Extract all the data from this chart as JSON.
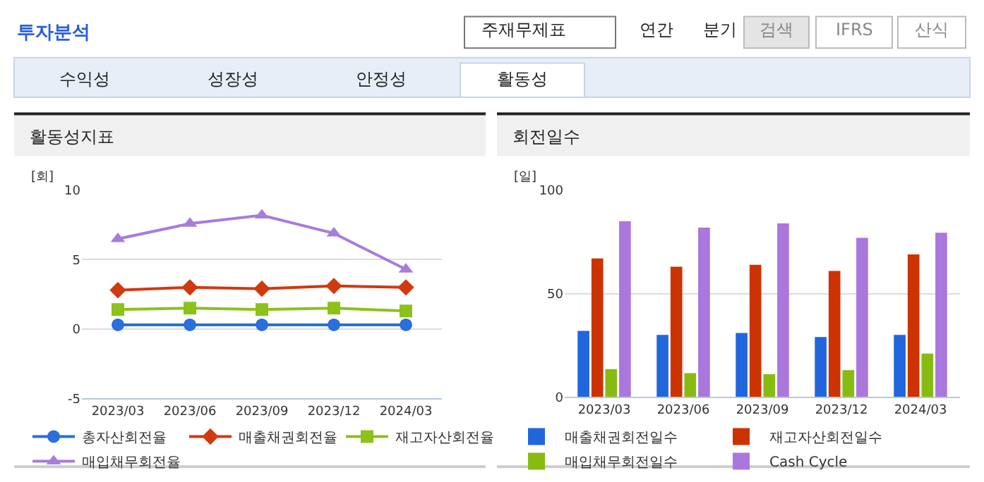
{
  "chart_data": [
    {
      "type": "other",
      "title": "투자분석",
      "annotations": [
        "주재무제표",
        "연간",
        "분기",
        "검색",
        "IFRS",
        "산식",
        "수익성",
        "성장성",
        "안정성",
        "활동성"
      ]
    },
    {
      "type": "line",
      "title": "활동성지표",
      "ylabel": "[회]",
      "categories": [
        "2023/03",
        "2023/06",
        "2023/09",
        "2023/12",
        "2024/03"
      ],
      "ylim": [
        -5,
        10
      ],
      "yticks": [
        -5,
        0,
        5,
        10
      ],
      "grid": "y",
      "legend": "bottom",
      "series": [
        {
          "name": "총자산회전율",
          "color": "#2a6fdb",
          "marker": "circle",
          "values": [
            0.3,
            0.3,
            0.3,
            0.3,
            0.3
          ]
        },
        {
          "name": "매출채권회전율",
          "color": "#d03a10",
          "marker": "diamond",
          "values": [
            2.8,
            3.0,
            2.9,
            3.1,
            3.0
          ]
        },
        {
          "name": "재고자산회전율",
          "color": "#8cc21a",
          "marker": "square",
          "values": [
            1.4,
            1.5,
            1.4,
            1.5,
            1.3
          ]
        },
        {
          "name": "매입채무회전율",
          "color": "#a77ddb",
          "marker": "triangle",
          "values": [
            6.5,
            7.6,
            8.2,
            6.9,
            4.3
          ]
        }
      ]
    },
    {
      "type": "bar",
      "title": "회전일수",
      "ylabel": "[일]",
      "categories": [
        "2023/03",
        "2023/06",
        "2023/09",
        "2023/12",
        "2024/03"
      ],
      "ylim": [
        0,
        100
      ],
      "yticks": [
        0,
        50,
        100
      ],
      "grid": "y",
      "legend": "bottom",
      "series": [
        {
          "name": "매출채권회전일수",
          "color": "#2266dd",
          "values": [
            32,
            30,
            31,
            29,
            30
          ]
        },
        {
          "name": "재고자산회전일수",
          "color": "#cc3300",
          "values": [
            67,
            63,
            64,
            61,
            69
          ]
        },
        {
          "name": "매입채무회전일수",
          "color": "#88bb11",
          "values": [
            13.5,
            11.5,
            11,
            13,
            21
          ]
        },
        {
          "name": "Cash Cycle",
          "color": "#aa77dd",
          "values": [
            85,
            82,
            84,
            77,
            79.5
          ]
        }
      ]
    }
  ]
}
